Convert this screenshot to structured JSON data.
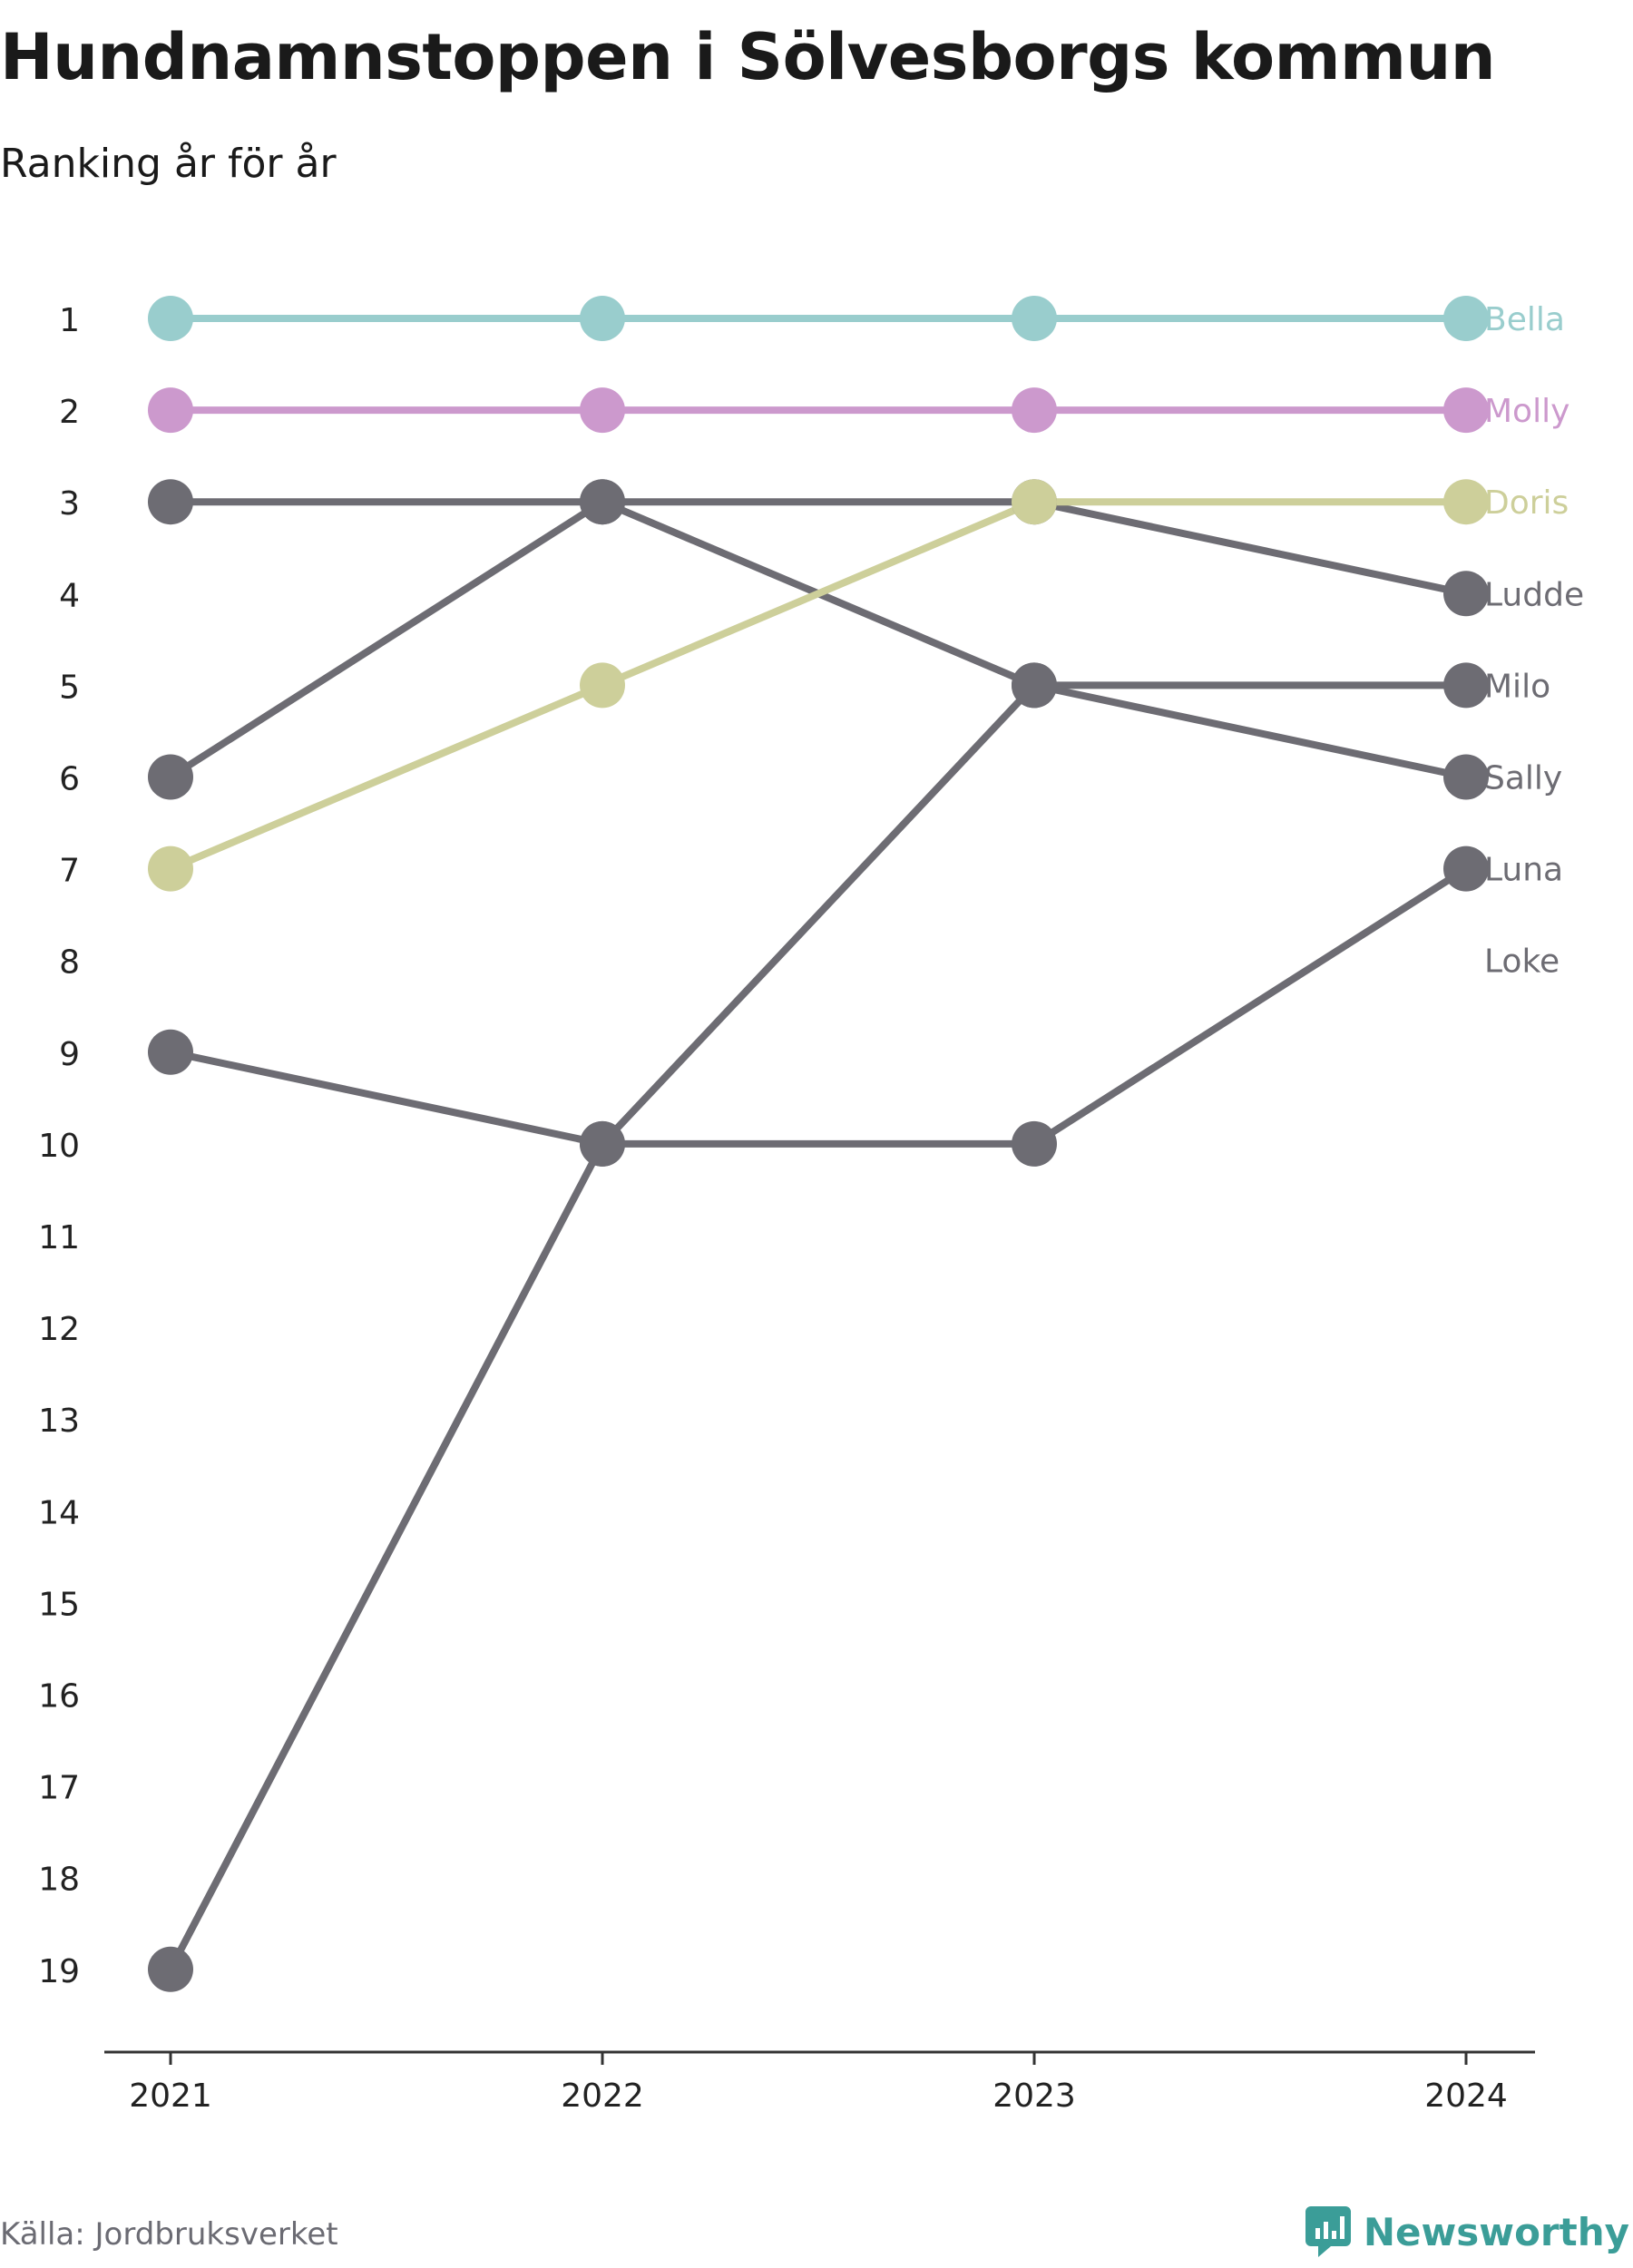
{
  "header": {
    "title": "Hundnamnstoppen i Sölvesborgs kommun",
    "subtitle": "Ranking år för år"
  },
  "footer": {
    "source": "Källa: Jordbruksverket",
    "brand": "Newsworthy"
  },
  "colors": {
    "Bella": "#99cdcd",
    "Molly": "#cc99cd",
    "Doris": "#cdcf9a",
    "default": "#6d6c73",
    "brand": "#3b9d98",
    "axis": "#333333"
  },
  "chart_data": {
    "type": "line",
    "subtype": "bump",
    "x": [
      "2021",
      "2022",
      "2023",
      "2024"
    ],
    "ylim": [
      1,
      19
    ],
    "y_inverted": true,
    "yticks": [
      "1",
      "2",
      "3",
      "4",
      "5",
      "6",
      "7",
      "8",
      "9",
      "10",
      "11",
      "12",
      "13",
      "14",
      "15",
      "16",
      "17",
      "18",
      "19"
    ],
    "grid": false,
    "series": [
      {
        "name": "Ludde",
        "values": [
          6,
          3,
          3,
          4
        ]
      },
      {
        "name": "Milo",
        "values": [
          19,
          10,
          5,
          5
        ]
      },
      {
        "name": "Sally",
        "values": [
          3,
          3,
          5,
          6
        ]
      },
      {
        "name": "Luna",
        "values": [
          9,
          10,
          10,
          7
        ]
      },
      {
        "name": "Loke",
        "values": [
          null,
          null,
          null,
          8
        ]
      },
      {
        "name": "Doris",
        "values": [
          7,
          5,
          3,
          3
        ]
      },
      {
        "name": "Molly",
        "values": [
          2,
          2,
          2,
          2
        ]
      },
      {
        "name": "Bella",
        "values": [
          1,
          1,
          1,
          1
        ]
      }
    ]
  }
}
